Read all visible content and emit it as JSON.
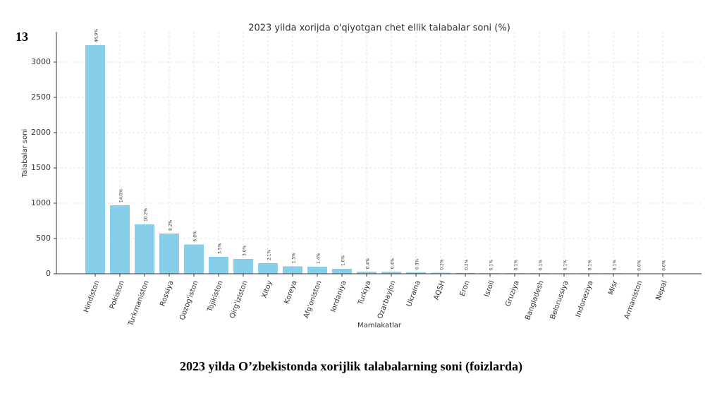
{
  "page_number": "13",
  "caption": "2023 yilda O’zbekistonda xorijlik talabalarning soni (foizlarda)",
  "chart_data": {
    "type": "bar",
    "title": "2023 yilda xorijda o'qiyotgan chet ellik talabalar soni (%)",
    "x_label": "Mamlakatlar",
    "y_label": "Talabalar soni",
    "categories": [
      "Hindiston",
      "Pokiston",
      "Turkmaniston",
      "Rossiya",
      "Qozog'iston",
      "Tojikiston",
      "Qirg'iziston",
      "Xitoy",
      "Koreya",
      "Afg'oniston",
      "Iordaniya",
      "Turkiya",
      "Ozarbayjon",
      "Ukraina",
      "AQSH",
      "Eron",
      "Isroil",
      "Gruziya",
      "Bangladesh",
      "Belorussiya",
      "Indoneziya",
      "Misr",
      "Armaniston",
      "Nepal"
    ],
    "values": [
      3240,
      970,
      700,
      570,
      415,
      240,
      210,
      150,
      105,
      100,
      70,
      28,
      28,
      20,
      15,
      12,
      8,
      8,
      8,
      7,
      7,
      7,
      3,
      2
    ],
    "percent_labels": [
      "46.9%",
      "14.0%",
      "10.2%",
      "8.2%",
      "6.0%",
      "3.5%",
      "3.0%",
      "2.1%",
      "1.5%",
      "1.4%",
      "1.0%",
      "0.4%",
      "0.4%",
      "0.3%",
      "0.2%",
      "0.2%",
      "0.1%",
      "0.1%",
      "0.1%",
      "0.1%",
      "0.1%",
      "0.1%",
      "0.0%",
      "0.0%"
    ],
    "color": "#87ceeb",
    "ylim": [
      0,
      3430
    ],
    "yticks": [
      0,
      500,
      1000,
      1500,
      2000,
      2500,
      3000
    ],
    "grid": true
  }
}
